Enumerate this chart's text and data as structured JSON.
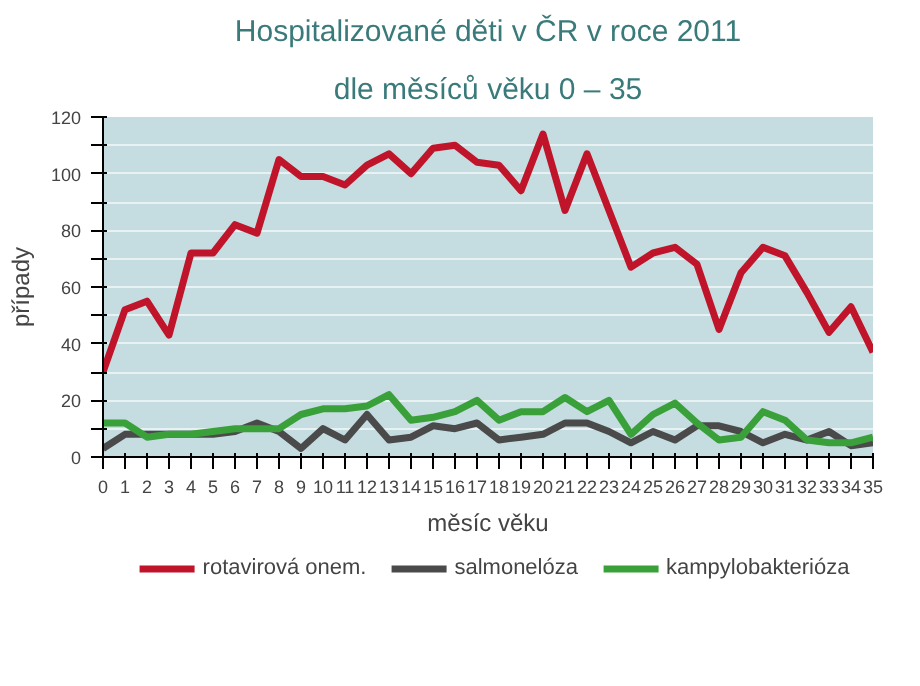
{
  "chart_data": {
    "type": "line",
    "title": "Hospitalizované děti v ČR v roce 2011",
    "subtitle": "dle měsíců věku 0 – 35",
    "xlabel": "měsíc věku",
    "ylabel": "případy",
    "x": [
      0,
      1,
      2,
      3,
      4,
      5,
      6,
      7,
      8,
      9,
      10,
      11,
      12,
      13,
      14,
      15,
      16,
      17,
      18,
      19,
      20,
      21,
      22,
      23,
      24,
      25,
      26,
      27,
      28,
      29,
      30,
      31,
      32,
      33,
      34,
      35
    ],
    "xlim": [
      0,
      35
    ],
    "xticks": [
      0,
      1,
      2,
      3,
      4,
      5,
      6,
      7,
      8,
      9,
      10,
      11,
      12,
      13,
      14,
      15,
      16,
      17,
      18,
      19,
      20,
      21,
      22,
      23,
      24,
      25,
      26,
      27,
      28,
      29,
      30,
      31,
      32,
      33,
      34,
      35
    ],
    "ylim": [
      0,
      120
    ],
    "yticks": [
      0,
      {
        "value": 10,
        "label": null
      },
      20,
      {
        "value": 30,
        "label": null
      },
      40,
      {
        "value": 50,
        "label": null
      },
      60,
      {
        "value": 70,
        "label": null
      },
      80,
      {
        "value": 90,
        "label": null
      },
      100,
      {
        "value": 110,
        "label": null
      },
      120
    ],
    "grid": "y",
    "legend": "bottom",
    "marker": "none",
    "line_style": "solid",
    "series": [
      {
        "name": "rotavirová onem.",
        "color": "#c0142a",
        "values": [
          30,
          52,
          55,
          43,
          72,
          72,
          82,
          79,
          105,
          99,
          99,
          96,
          103,
          107,
          100,
          109,
          110,
          104,
          103,
          94,
          114,
          87,
          107,
          87,
          67,
          72,
          74,
          68,
          45,
          65,
          74,
          71,
          58,
          44,
          53,
          37
        ]
      },
      {
        "name": "salmonelóza",
        "color": "#4a4a4a",
        "values": [
          3,
          8,
          8,
          8,
          8,
          8,
          9,
          12,
          9,
          3,
          10,
          6,
          15,
          6,
          7,
          11,
          10,
          12,
          6,
          7,
          8,
          12,
          12,
          9,
          5,
          9,
          6,
          11,
          11,
          9,
          5,
          8,
          6,
          9,
          4,
          5
        ]
      },
      {
        "name": "kampylobakterióza",
        "color": "#3aa03a",
        "values": [
          12,
          12,
          7,
          8,
          8,
          9,
          10,
          10,
          10,
          15,
          17,
          17,
          18,
          22,
          13,
          14,
          16,
          20,
          13,
          16,
          16,
          21,
          16,
          20,
          8,
          15,
          19,
          12,
          6,
          7,
          16,
          13,
          6,
          5,
          5,
          7
        ]
      }
    ]
  }
}
